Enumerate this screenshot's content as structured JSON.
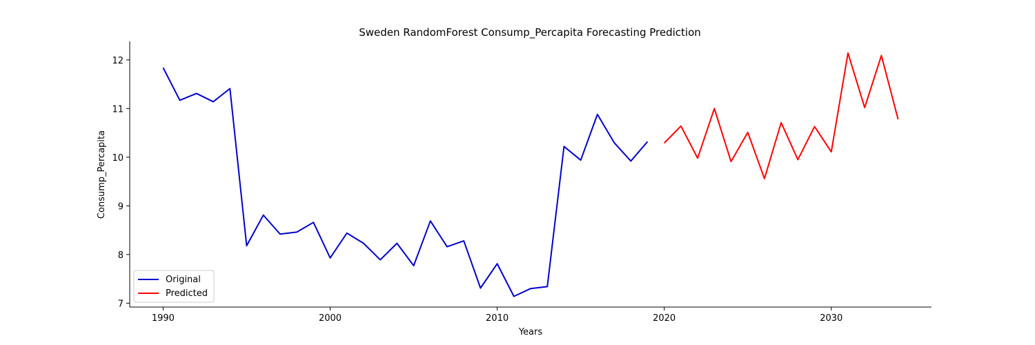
{
  "chart_data": {
    "type": "line",
    "title": "Sweden RandomForest Consump_Percapita Forecasting Prediction",
    "xlabel": "Years",
    "ylabel": "Consump_Percapita",
    "xlim": [
      1988,
      2036
    ],
    "ylim": [
      6.92,
      12.38
    ],
    "xticks": [
      1990,
      2000,
      2010,
      2020,
      2030
    ],
    "yticks": [
      7,
      8,
      9,
      10,
      11,
      12
    ],
    "grid": false,
    "legend_position": "lower-left",
    "series": [
      {
        "name": "Original",
        "color": "#0000cc",
        "x": [
          1990,
          1991,
          1992,
          1993,
          1994,
          1995,
          1996,
          1997,
          1998,
          1999,
          2000,
          2001,
          2002,
          2003,
          2004,
          2005,
          2006,
          2007,
          2008,
          2009,
          2010,
          2011,
          2012,
          2013,
          2014,
          2015,
          2016,
          2017,
          2018,
          2019
        ],
        "values": [
          11.84,
          11.17,
          11.31,
          11.14,
          11.41,
          8.18,
          8.81,
          8.42,
          8.46,
          8.66,
          7.93,
          8.44,
          8.23,
          7.89,
          8.23,
          7.77,
          8.69,
          8.16,
          8.28,
          7.31,
          7.81,
          7.14,
          7.3,
          7.34,
          10.22,
          9.94,
          10.88,
          10.3,
          9.92,
          10.32
        ]
      },
      {
        "name": "Predicted",
        "color": "#ff0000",
        "x": [
          2020,
          2021,
          2022,
          2023,
          2024,
          2025,
          2026,
          2027,
          2028,
          2029,
          2030,
          2031,
          2032,
          2033,
          2034
        ],
        "values": [
          10.29,
          10.64,
          9.98,
          11.0,
          9.91,
          10.51,
          9.56,
          10.71,
          9.95,
          10.63,
          10.11,
          12.14,
          11.02,
          12.09,
          10.78
        ]
      }
    ]
  }
}
